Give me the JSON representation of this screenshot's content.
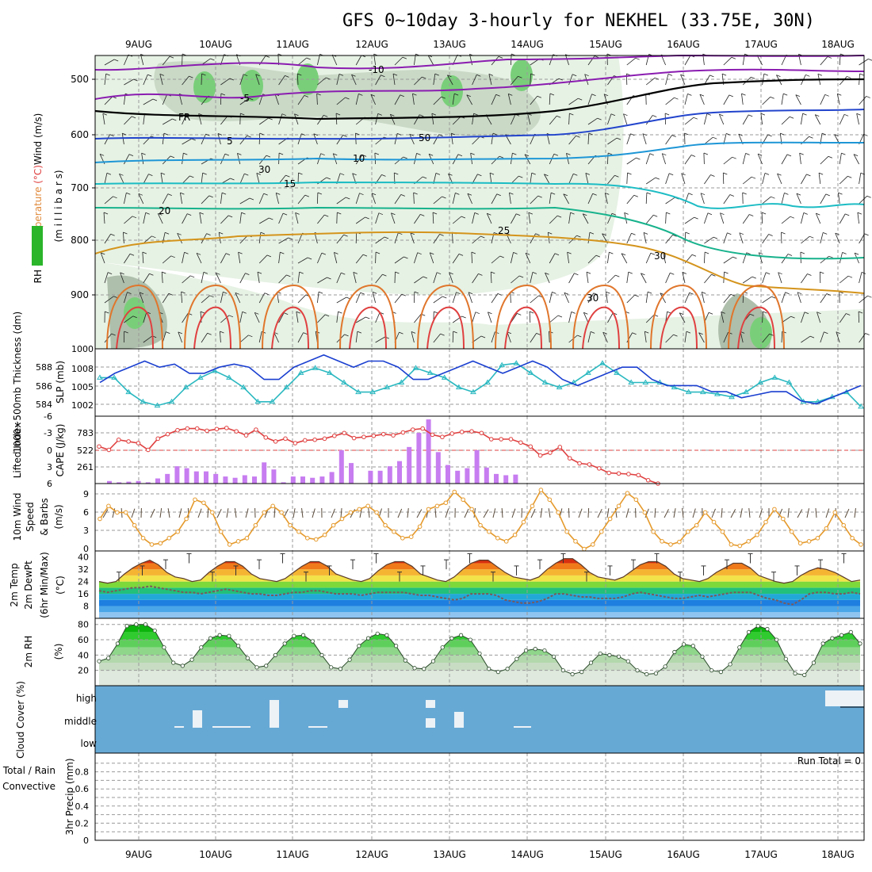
{
  "title": "GFS 0~10day 3-hourly for NEKHEL (33.75E, 30N)",
  "dates": [
    "9AUG",
    "10AUG",
    "11AUG",
    "12AUG",
    "13AUG",
    "14AUG",
    "15AUG",
    "16AUG",
    "17AUG",
    "18AUG"
  ],
  "colors": {
    "cloud_bg": "#67a9d5",
    "rh_dark": "#00b400",
    "temp_contour_25": "#d4941c",
    "temp_contour_20": "#17b28c",
    "temp_contour_15": "#1cbcc4",
    "temp_contour_10": "#1e96d6",
    "temp_contour_5": "#2244cc",
    "temp_contour_neg": "#8a1cb0",
    "slp_line": "#1a3fd0",
    "thickness_line": "#2ab8c0",
    "lifted_index": "#e04040",
    "cape_bar": "#c77df0",
    "wind10m": "#e59a2c"
  },
  "chart_data": [
    {
      "panel": "upper",
      "type": "heatmap",
      "ylabel_parts": [
        "RH (%)",
        "Temperature",
        "(°C)",
        "Wind",
        "(m/s)"
      ],
      "ylabel2": "(m i l l i b a r s)",
      "yticks": [
        "500",
        "600",
        "700",
        "800",
        "900"
      ],
      "contour_labels": [
        "-10",
        "-5",
        "FR",
        "5",
        "10",
        "15",
        "20",
        "25",
        "30",
        "50",
        "30",
        "30"
      ]
    },
    {
      "panel": "slp_thickness",
      "type": "line",
      "ylabel_left": "1000~500mb Thickness (dm)",
      "ylabel_right": "SLP (mb)",
      "left_ticks": [
        "588",
        "586",
        "584"
      ],
      "right_ticks": [
        "1000",
        "1008",
        "1005",
        "1002"
      ],
      "series": [
        {
          "name": "SLP",
          "values": [
            1005.5,
            1007,
            1008,
            1009,
            1008,
            1008.5,
            1007,
            1007,
            1008,
            1008.5,
            1008,
            1006,
            1006,
            1008,
            1009,
            1010,
            1009,
            1008,
            1009,
            1009,
            1008,
            1006,
            1006,
            1007,
            1008,
            1009,
            1008,
            1007,
            1008,
            1009,
            1008,
            1006,
            1005,
            1006,
            1007,
            1008,
            1008,
            1006,
            1005,
            1005,
            1005,
            1004,
            1004,
            1003,
            1003.5,
            1004,
            1004,
            1002.5,
            1002,
            1003,
            1004,
            1005
          ]
        },
        {
          "name": "Thickness",
          "values": [
            586.5,
            586.5,
            585,
            584,
            583.6,
            584,
            585.5,
            586.5,
            587.2,
            586.5,
            585.5,
            584,
            584,
            585.5,
            587,
            587.5,
            587,
            586,
            585,
            585,
            585.5,
            586,
            587.5,
            587,
            586.5,
            585.5,
            585,
            586,
            587.8,
            588,
            587,
            586,
            585.5,
            586,
            587,
            588,
            587,
            586,
            586,
            586,
            585.5,
            585,
            585,
            584.8,
            584.5,
            585,
            586,
            586.5,
            586,
            584,
            584,
            584.5,
            585,
            583.5
          ]
        }
      ]
    },
    {
      "panel": "cape_li",
      "type": "bar",
      "ylabel_left": "Lifted Index",
      "ylabel_right": "CAPE (J/kg)",
      "li_ticks": [
        "-6",
        "-3",
        "0",
        "3",
        "6"
      ],
      "cape_ticks": [
        "783",
        "522",
        "261"
      ],
      "cape": [
        40,
        20,
        30,
        40,
        20,
        80,
        150,
        270,
        240,
        190,
        190,
        150,
        110,
        90,
        130,
        110,
        330,
        220,
        20,
        110,
        110,
        90,
        110,
        180,
        520,
        320,
        0,
        200,
        200,
        270,
        350,
        570,
        790,
        1000,
        490,
        290,
        200,
        240,
        520,
        250,
        150,
        130,
        140
      ],
      "lifted_index": [
        -0.6,
        0,
        -1.8,
        -1.5,
        -1.2,
        0,
        -2,
        -2.8,
        -3.5,
        -3.8,
        -3.8,
        -3.4,
        -3.7,
        -3.9,
        -3.3,
        -2.6,
        -3.6,
        -2.2,
        -1.5,
        -2,
        -1.2,
        -1.7,
        -1.8,
        -2,
        -2.5,
        -3,
        -2.1,
        -2.3,
        -2.5,
        -2.8,
        -2.6,
        -3.1,
        -3.6,
        -3.8,
        -2.7,
        -2.3,
        -2.9,
        -3.2,
        -3.3,
        -3.0,
        -1.9,
        -1.9,
        -1.9,
        -1.3,
        -0.6,
        1,
        0.5,
        -0.5,
        1.5,
        2.4,
        2.6,
        3.3,
        4.1,
        4.2,
        4.3,
        4.5,
        5.4,
        6
      ]
    },
    {
      "panel": "wind10m",
      "type": "line",
      "ylabel_parts": [
        "10m Wind",
        "Speed",
        "& Barbs",
        "(m/s)"
      ],
      "yticks": [
        "9",
        "6",
        "3",
        "0"
      ],
      "values": [
        5,
        7,
        6,
        6,
        4,
        2,
        1,
        1.2,
        2,
        3,
        5,
        8,
        7.5,
        6,
        3,
        1,
        1.5,
        2,
        4,
        6,
        7,
        6,
        4,
        3,
        2,
        1.8,
        2.5,
        4,
        5,
        6,
        6.5,
        7,
        6,
        4,
        3,
        2,
        2.2,
        3.8,
        6.5,
        7,
        7.5,
        9.2,
        8,
        6.5,
        4,
        3,
        2,
        1.5,
        2.5,
        4.5,
        7,
        9.5,
        8,
        6,
        3,
        1.5,
        0.3,
        1,
        3,
        5,
        7,
        9,
        8,
        6,
        3,
        1.5,
        1,
        1.4,
        3,
        4,
        6,
        4.5,
        3,
        1,
        0.8,
        1.5,
        2.5,
        4.5,
        6.5,
        5,
        3,
        1.2,
        1.5,
        2,
        3.5,
        6,
        4,
        2,
        1
      ]
    },
    {
      "panel": "temp2m",
      "type": "area",
      "ylabel_parts": [
        "2m Temp",
        "2m DewPt",
        "(6hr Min/Max)",
        "(°C)"
      ],
      "yticks": [
        "40",
        "32",
        "24",
        "16",
        "8"
      ],
      "temp": [
        24,
        23,
        24,
        29,
        33,
        36,
        38,
        35,
        30,
        27,
        26,
        24,
        25,
        30,
        34,
        37,
        37,
        34,
        29,
        26,
        25,
        24,
        26,
        30,
        34,
        37,
        37,
        34,
        29,
        27,
        25,
        24,
        26,
        31,
        35,
        37,
        37,
        34,
        29,
        27,
        25,
        24,
        27,
        32,
        36,
        38,
        38,
        34,
        30,
        27,
        26,
        25,
        27,
        32,
        36,
        39,
        39,
        35,
        30,
        27,
        26,
        25,
        27,
        31,
        35,
        37,
        37,
        34,
        29,
        26,
        25,
        24,
        26,
        30,
        33,
        36,
        36,
        33,
        28,
        26,
        24,
        23,
        24,
        28,
        31,
        33,
        32,
        30,
        27,
        24,
        25
      ],
      "dewpoint": [
        18,
        17,
        18,
        19,
        20,
        20,
        21,
        20,
        19,
        18,
        17,
        17,
        16,
        17,
        18,
        19,
        18,
        17,
        16,
        16,
        15,
        15,
        16,
        17,
        17,
        18,
        18,
        17,
        16,
        16,
        16,
        15,
        16,
        17,
        17,
        17,
        17,
        16,
        15,
        15,
        14,
        13,
        12,
        13,
        16,
        16,
        16,
        15,
        12,
        11,
        10,
        10,
        11,
        13,
        16,
        16,
        15,
        14,
        14,
        13,
        13,
        13,
        14,
        16,
        17,
        16,
        15,
        14,
        13,
        13,
        14,
        15,
        14,
        15,
        16,
        17,
        17,
        17,
        15,
        13,
        12,
        10,
        9,
        12,
        16,
        17,
        17,
        16,
        16,
        17,
        16
      ]
    },
    {
      "panel": "rh2m",
      "type": "area",
      "ylabel_parts": [
        "2m RH",
        "(%)"
      ],
      "yticks": [
        "80",
        "60",
        "40",
        "20"
      ],
      "values": [
        32,
        36,
        55,
        78,
        80,
        80,
        72,
        50,
        30,
        26,
        34,
        50,
        62,
        66,
        65,
        52,
        36,
        24,
        26,
        40,
        55,
        65,
        66,
        58,
        40,
        24,
        22,
        34,
        52,
        62,
        68,
        66,
        52,
        33,
        23,
        22,
        32,
        50,
        62,
        66,
        60,
        42,
        22,
        18,
        22,
        35,
        46,
        48,
        46,
        38,
        20,
        15,
        18,
        30,
        42,
        40,
        38,
        32,
        20,
        15,
        16,
        25,
        44,
        54,
        52,
        38,
        20,
        18,
        28,
        50,
        70,
        78,
        74,
        60,
        35,
        16,
        14,
        30,
        55,
        62,
        66,
        70,
        55
      ]
    },
    {
      "panel": "cloud",
      "type": "bar",
      "ylabel": "Cloud Cover (%)",
      "yticks": [
        "high",
        "middle",
        "low"
      ]
    },
    {
      "panel": "precip",
      "type": "bar",
      "ylabel_left_1": "Total / Rain",
      "ylabel_left_2": "Convective",
      "ylabel": "3hr Precip (mm)",
      "yticks": [
        "0.8",
        "0.6",
        "0.4",
        "0.2",
        "0"
      ],
      "annotation": "Run Total = 0",
      "ylim": [
        0,
        1
      ]
    }
  ]
}
